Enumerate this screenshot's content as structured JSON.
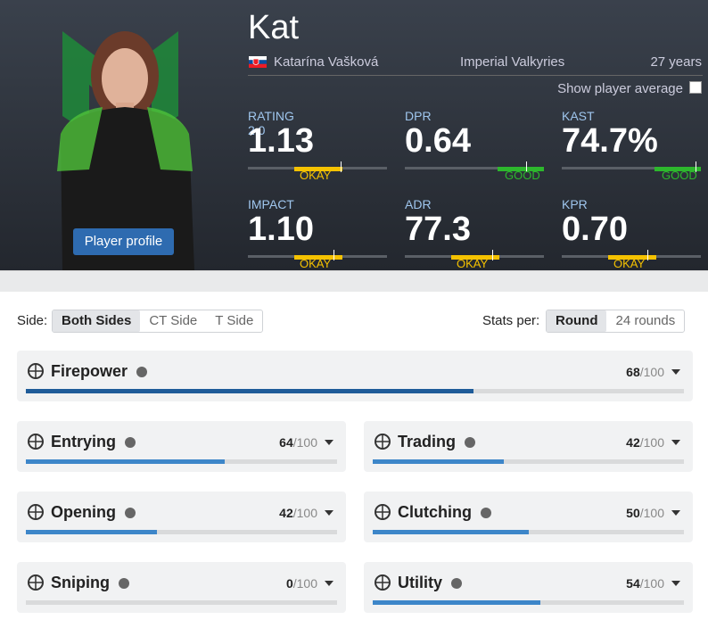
{
  "player": {
    "nickname": "Kat",
    "real_name": "Katarína Vašková",
    "team": "Imperial Valkyries",
    "age": "27 years",
    "show_average": "Show player average",
    "profile_button": "Player profile"
  },
  "stats": [
    {
      "label": "RATING 2.0",
      "value": "1.13",
      "rating": "OKAY"
    },
    {
      "label": "DPR",
      "value": "0.64",
      "rating": "GOOD"
    },
    {
      "label": "KAST",
      "value": "74.7%",
      "rating": "GOOD"
    },
    {
      "label": "IMPACT",
      "value": "1.10",
      "rating": "OKAY"
    },
    {
      "label": "ADR",
      "value": "77.3",
      "rating": "OKAY"
    },
    {
      "label": "KPR",
      "value": "0.70",
      "rating": "OKAY"
    }
  ],
  "filters": {
    "side_label": "Side:",
    "sides": [
      "Both Sides",
      "CT Side",
      "T Side"
    ],
    "stats_per_label": "Stats per:",
    "per": [
      "Round",
      "24 rounds"
    ]
  },
  "max": {
    "value": 100,
    "label": "/100"
  },
  "categories": [
    {
      "name": "Firepower",
      "score": 68
    },
    {
      "name": "Entrying",
      "score": 64
    },
    {
      "name": "Trading",
      "score": 42
    },
    {
      "name": "Opening",
      "score": 42
    },
    {
      "name": "Clutching",
      "score": 50
    },
    {
      "name": "Sniping",
      "score": 0
    },
    {
      "name": "Utility",
      "score": 54
    }
  ]
}
